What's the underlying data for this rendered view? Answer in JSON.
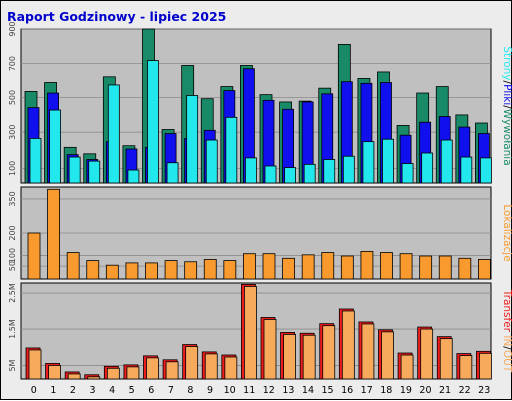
{
  "title": "Raport Godzinowy -  lipiec 2025",
  "colors": {
    "background": "#ececec",
    "plot": "#c0c0c0",
    "title": "#0000cc",
    "visits": "#188a68",
    "pages": "#1010ee",
    "files": "#22e8ee",
    "sites": "#f89a2e",
    "traffic_in": "#ee1c1c",
    "traffic_out": "#f8aa5c"
  },
  "chart_data": [
    {
      "type": "bar",
      "panel": "top",
      "categories": [
        "0",
        "1",
        "2",
        "3",
        "4",
        "5",
        "6",
        "7",
        "8",
        "9",
        "10",
        "11",
        "12",
        "13",
        "14",
        "15",
        "16",
        "17",
        "18",
        "19",
        "20",
        "21",
        "22",
        "23"
      ],
      "ylim": [
        0,
        950
      ],
      "ytick_labels": [
        "100",
        "300",
        "500",
        "700",
        "900"
      ],
      "side_label": [
        "Strony",
        "/",
        "Pliki",
        "/",
        "Wywołania"
      ],
      "series": [
        {
          "name": "Wywołania",
          "values": [
            565,
            620,
            220,
            180,
            655,
            230,
            950,
            330,
            725,
            520,
            595,
            725,
            545,
            500,
            505,
            585,
            855,
            645,
            685,
            355,
            555,
            595,
            420,
            370
          ]
        },
        {
          "name": "Strony",
          "values": [
            465,
            555,
            175,
            145,
            255,
            210,
            220,
            305,
            275,
            325,
            570,
            705,
            510,
            455,
            500,
            550,
            625,
            615,
            620,
            295,
            375,
            410,
            345,
            305
          ]
        },
        {
          "name": "Pliki",
          "values": [
            275,
            450,
            160,
            135,
            605,
            80,
            755,
            125,
            540,
            265,
            405,
            155,
            105,
            95,
            115,
            145,
            165,
            255,
            270,
            120,
            185,
            265,
            160,
            155
          ]
        }
      ]
    },
    {
      "type": "bar",
      "panel": "middle",
      "categories": [
        "0",
        "1",
        "2",
        "3",
        "4",
        "5",
        "6",
        "7",
        "8",
        "9",
        "10",
        "11",
        "12",
        "13",
        "14",
        "15",
        "16",
        "17",
        "18",
        "19",
        "20",
        "21",
        "22",
        "23"
      ],
      "ylim": [
        0,
        400
      ],
      "ytick_labels": [
        "50",
        "100",
        "200",
        "350"
      ],
      "side_label": [
        "Lokalizacje"
      ],
      "series": [
        {
          "name": "Lokalizacje",
          "values": [
            200,
            390,
            115,
            80,
            60,
            70,
            70,
            80,
            75,
            85,
            80,
            110,
            110,
            90,
            105,
            115,
            100,
            120,
            115,
            110,
            100,
            100,
            90,
            85
          ]
        }
      ]
    },
    {
      "type": "bar",
      "panel": "bottom",
      "categories": [
        "0",
        "1",
        "2",
        "3",
        "4",
        "5",
        "6",
        "7",
        "8",
        "9",
        "10",
        "11",
        "12",
        "13",
        "14",
        "15",
        "16",
        "17",
        "18",
        "19",
        "20",
        "21",
        "22",
        "23"
      ],
      "ylim": [
        0,
        3.4
      ],
      "ytick_labels": [
        "5M",
        "1.5M",
        "2.5M"
      ],
      "side_label": [
        "Transfer",
        " ",
        "IN",
        "/",
        "OUT"
      ],
      "series": [
        {
          "name": "Transfer",
          "values": [
            1.1,
            0.55,
            0.25,
            0.15,
            0.45,
            0.5,
            0.82,
            0.68,
            1.22,
            0.96,
            0.85,
            3.35,
            2.18,
            1.65,
            1.62,
            1.96,
            2.48,
            2.02,
            1.74,
            0.92,
            1.84,
            1.5,
            0.9,
            0.98
          ]
        }
      ]
    }
  ]
}
